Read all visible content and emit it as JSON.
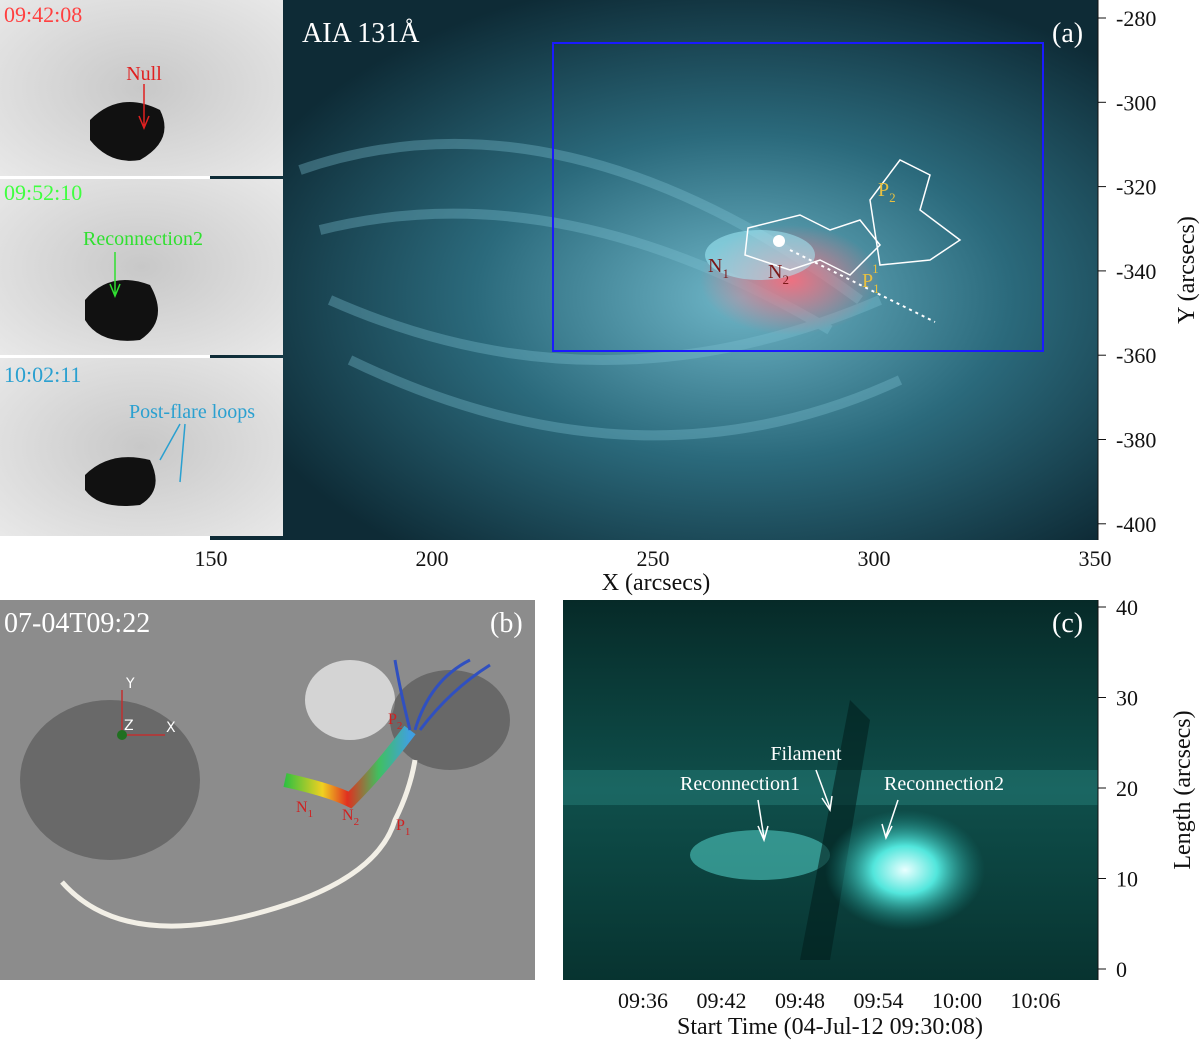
{
  "panel_a": {
    "label": "(a)",
    "title": "AIA 131Å",
    "x_label": "X (arcsecs)",
    "y_label": "Y (arcsecs)",
    "x_ticks": [
      "150",
      "200",
      "250",
      "300",
      "350"
    ],
    "y_ticks": [
      "-280",
      "-300",
      "-320",
      "-340",
      "-360",
      "-380",
      "-400"
    ],
    "footpoints": {
      "n1": {
        "base": "N",
        "sub": "1"
      },
      "n2": {
        "base": "N",
        "sub": "2"
      },
      "p1": {
        "base": "P",
        "sub": "1",
        "sup": "1"
      },
      "p2": {
        "base": "P",
        "sub": "2"
      }
    }
  },
  "insets": [
    {
      "time": "09:42:08",
      "label": "Null"
    },
    {
      "time": "09:52:10",
      "label": "Reconnection2"
    },
    {
      "time": "10:02:11",
      "label": "Post-flare loops"
    }
  ],
  "panel_b": {
    "label": "(b)",
    "time": "07-04T09:22",
    "axes": {
      "y": "Y",
      "z": "Z",
      "x": "X"
    },
    "footpoints": {
      "n1": {
        "base": "N",
        "sub": "1"
      },
      "n2": {
        "base": "N",
        "sub": "2"
      },
      "p1": {
        "base": "P",
        "sub": "1"
      },
      "p2": {
        "base": "P",
        "sub": "2"
      }
    }
  },
  "panel_c": {
    "label": "(c)",
    "x_label": "Start Time (04-Jul-12 09:30:08)",
    "y_label": "Length (arcsecs)",
    "x_ticks": [
      "09:36",
      "09:42",
      "09:48",
      "09:54",
      "10:00",
      "10:06"
    ],
    "y_ticks": [
      "0",
      "10",
      "20",
      "30",
      "40"
    ],
    "annotations": {
      "reconnection1": "Reconnection1",
      "filament": "Filament",
      "reconnection2": "Reconnection2"
    }
  }
}
